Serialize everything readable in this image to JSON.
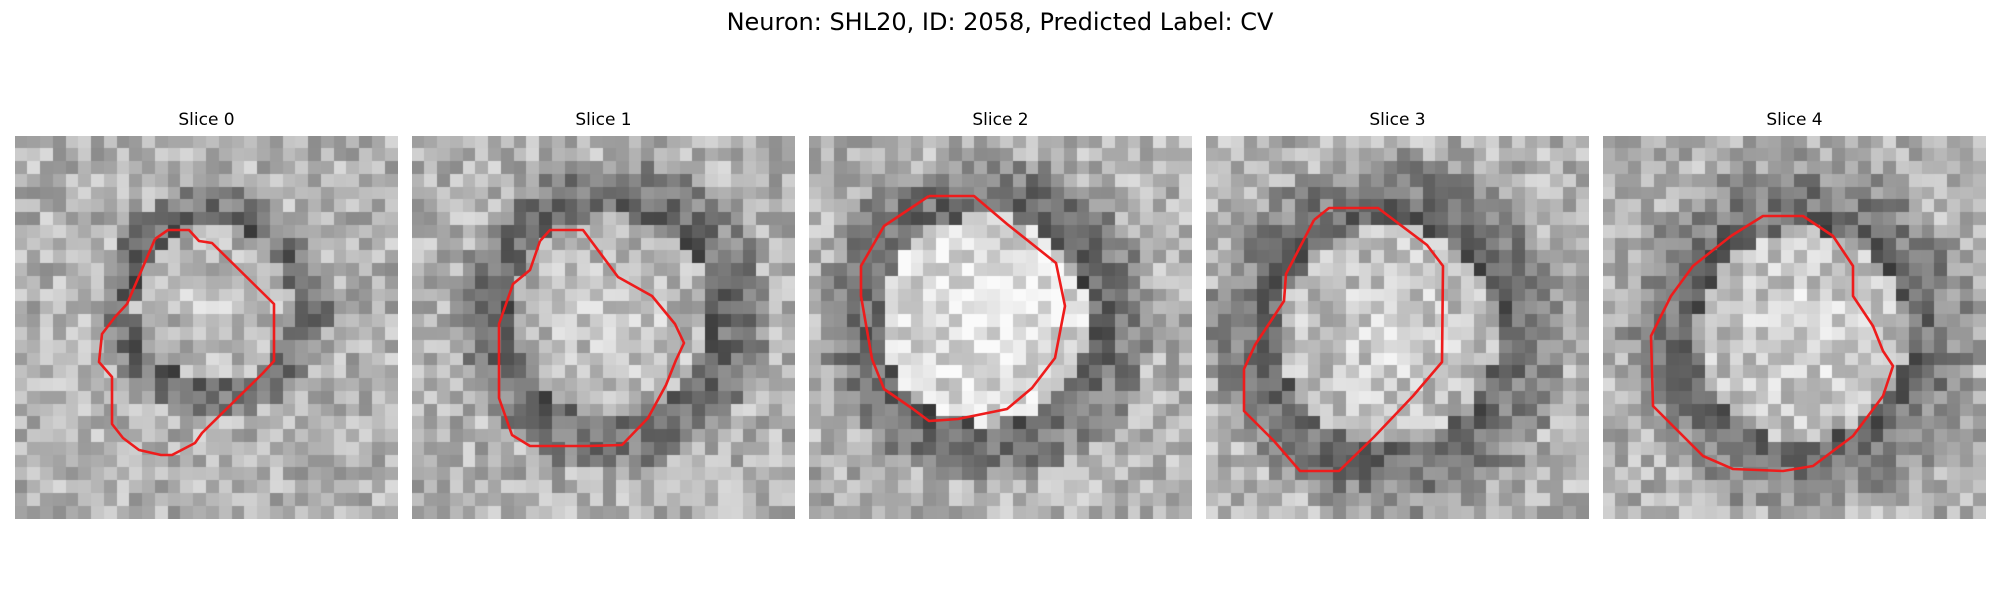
{
  "figure": {
    "title": "Neuron: SHL20, ID: 2058, Predicted Label: CV"
  },
  "slices": [
    {
      "label": "Slice 0"
    },
    {
      "label": "Slice 1"
    },
    {
      "label": "Slice 2"
    },
    {
      "label": "Slice 3"
    },
    {
      "label": "Slice 4"
    }
  ],
  "colors": {
    "outline": "#ee1c1c",
    "colormap": "grayscale"
  }
}
